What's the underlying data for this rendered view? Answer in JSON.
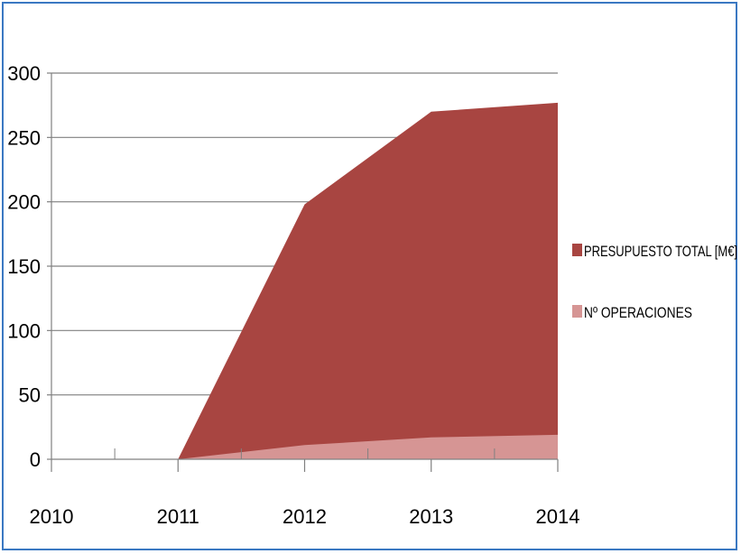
{
  "chart_data": {
    "type": "area",
    "title": "",
    "xlabel": "",
    "ylabel": "",
    "x": [
      "2010",
      "2011",
      "2012",
      "2013",
      "2014"
    ],
    "ylim": [
      0,
      300
    ],
    "yticks": [
      "0",
      "50",
      "100",
      "150",
      "200",
      "250",
      "300"
    ],
    "grid": true,
    "legend_position": "right",
    "stacked": false,
    "series": [
      {
        "name": "PRESUPUESTO TOTAL [M€]",
        "values": [
          0,
          0,
          198,
          270,
          277
        ],
        "color": "#a84541"
      },
      {
        "name": "Nº OPERACIONES",
        "values": [
          0,
          0,
          11,
          17,
          19
        ],
        "color": "#d69594"
      }
    ]
  },
  "colors": {
    "axis": "#808080",
    "grid": "#808080",
    "border": "#3a78c2"
  }
}
